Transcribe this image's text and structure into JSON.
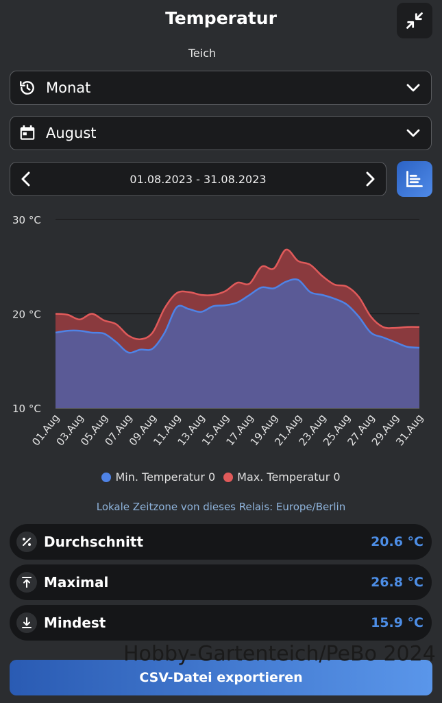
{
  "header": {
    "title": "Temperatur",
    "subtitle": "Teich",
    "shrink_icon": "shrink-icon"
  },
  "period_select": {
    "icon": "history-icon",
    "value": "Monat"
  },
  "month_select": {
    "icon": "calendar-icon",
    "value": "August"
  },
  "date_range": {
    "text": "01.08.2023 - 31.08.2023"
  },
  "chart_toggle_icon": "chart-icon",
  "chart_data": {
    "type": "area",
    "x": [
      "01.Aug",
      "02.Aug",
      "03.Aug",
      "04.Aug",
      "05.Aug",
      "06.Aug",
      "07.Aug",
      "08.Aug",
      "09.Aug",
      "10.Aug",
      "11.Aug",
      "12.Aug",
      "13.Aug",
      "14.Aug",
      "15.Aug",
      "16.Aug",
      "17.Aug",
      "18.Aug",
      "19.Aug",
      "20.Aug",
      "21.Aug",
      "22.Aug",
      "23.Aug",
      "24.Aug",
      "25.Aug",
      "26.Aug",
      "27.Aug",
      "28.Aug",
      "29.Aug",
      "30.Aug",
      "31.Aug"
    ],
    "xticks": [
      "01.Aug",
      "03.Aug",
      "05.Aug",
      "07.Aug",
      "09.Aug",
      "11.Aug",
      "13.Aug",
      "15.Aug",
      "17.Aug",
      "19.Aug",
      "21.Aug",
      "23.Aug",
      "25.Aug",
      "27.Aug",
      "29.Aug",
      "31.Aug"
    ],
    "series": [
      {
        "name": "Min. Temperatur 0",
        "color": "#4f83e6",
        "values": [
          18.0,
          18.2,
          18.2,
          18.0,
          17.9,
          17.0,
          15.9,
          16.2,
          16.3,
          18.0,
          20.7,
          20.5,
          20.2,
          20.8,
          20.9,
          21.2,
          22.0,
          22.8,
          22.7,
          23.4,
          23.6,
          22.3,
          22.0,
          21.6,
          21.0,
          19.7,
          18.0,
          17.5,
          17.0,
          16.5,
          16.4
        ],
        "fill": "#5a5a96"
      },
      {
        "name": "Max. Temperatur 0",
        "color": "#e05a5a",
        "values": [
          20.0,
          19.9,
          19.4,
          20.0,
          19.3,
          18.9,
          17.7,
          17.3,
          18.0,
          20.6,
          22.2,
          22.3,
          22.0,
          22.0,
          22.4,
          23.3,
          23.2,
          25.0,
          24.8,
          26.8,
          25.6,
          25.2,
          24.0,
          23.1,
          22.9,
          21.8,
          19.7,
          18.6,
          18.5,
          18.6,
          18.6
        ],
        "fill": "#8a3a3e"
      }
    ],
    "yticks": [
      "30 °C",
      "20 °C",
      "10 °C"
    ],
    "ylim": [
      10,
      30
    ],
    "grid": true,
    "legend": "bottom"
  },
  "legend": {
    "min_label": "Min. Temperatur 0",
    "max_label": "Max. Temperatur 0",
    "min_color": "#4f83e6",
    "max_color": "#e05a5a"
  },
  "timezone_note": "Lokale Zeitzone von dieses Relais: Europe/Berlin",
  "stats": {
    "avg": {
      "icon": "percent-icon",
      "label": "Durchschnitt",
      "value": "20.6 °C"
    },
    "max": {
      "icon": "arrow-up-bar-icon",
      "label": "Maximal",
      "value": "26.8 °C"
    },
    "min": {
      "icon": "arrow-down-bar-icon",
      "label": "Mindest",
      "value": "15.9 °C"
    }
  },
  "watermark": "Hobby-Gartenteich/PeBo 2024",
  "export_button": "CSV-Datei exportieren"
}
